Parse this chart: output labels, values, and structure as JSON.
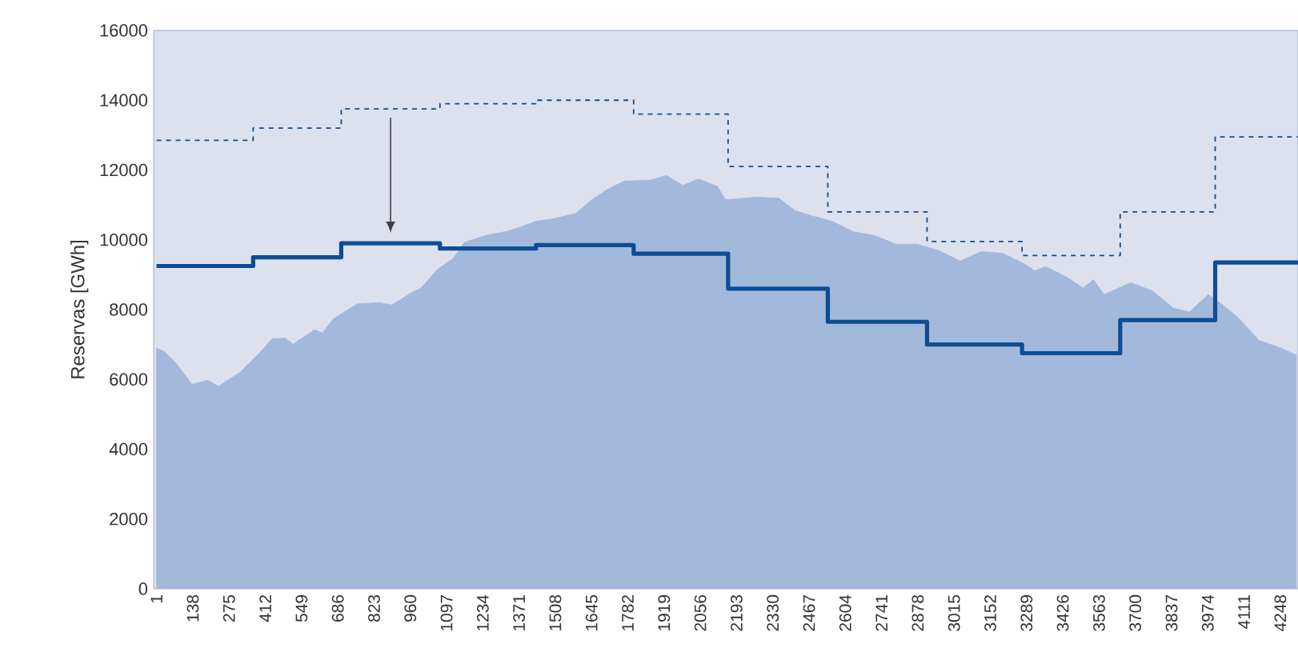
{
  "chart_data": {
    "type": "area",
    "ylabel": "Reservas [GWh]",
    "xlim": [
      -10,
      4315
    ],
    "ylim": [
      0,
      16000
    ],
    "xticks": [
      1,
      138,
      275,
      412,
      549,
      686,
      823,
      960,
      1097,
      1234,
      1371,
      1508,
      1645,
      1782,
      1919,
      2056,
      2193,
      2330,
      2467,
      2604,
      2741,
      2878,
      3015,
      3152,
      3289,
      3426,
      3563,
      3700,
      3837,
      3974,
      4111,
      4248
    ],
    "yticks": [
      0,
      2000,
      4000,
      6000,
      8000,
      10000,
      12000,
      14000,
      16000
    ],
    "series": [
      {
        "color": "#a3b9db",
        "x": [
          1,
          33,
          74,
          134,
          195,
          235,
          316,
          386,
          437,
          487,
          517,
          598,
          628,
          669,
          759,
          840,
          890,
          961,
          1001,
          1062,
          1122,
          1163,
          1243,
          1324,
          1364,
          1435,
          1506,
          1587,
          1647,
          1707,
          1768,
          1868,
          1929,
          1990,
          2050,
          2120,
          2151,
          2272,
          2353,
          2413,
          2474,
          2554,
          2635,
          2716,
          2796,
          2877,
          2958,
          3038,
          3119,
          3200,
          3280,
          3320,
          3361,
          3441,
          3502,
          3542,
          3582,
          3683,
          3764,
          3844,
          3905,
          3976,
          4026,
          4087,
          4167,
          4248,
          4308
        ],
        "values": [
          6900,
          6780,
          6470,
          5860,
          5970,
          5800,
          6200,
          6720,
          7160,
          7180,
          7010,
          7420,
          7330,
          7730,
          8160,
          8200,
          8130,
          8470,
          8620,
          9150,
          9460,
          9920,
          10120,
          10240,
          10330,
          10530,
          10610,
          10760,
          11150,
          11450,
          11680,
          11710,
          11840,
          11560,
          11740,
          11530,
          11150,
          11220,
          11190,
          10840,
          10690,
          10530,
          10230,
          10120,
          9870,
          9870,
          9690,
          9390,
          9660,
          9610,
          9310,
          9110,
          9230,
          8930,
          8620,
          8850,
          8430,
          8770,
          8540,
          8040,
          7930,
          8430,
          8160,
          7780,
          7120,
          6900,
          6700
        ]
      },
      {
        "type": "step",
        "color": "#0d4d96",
        "line_style": "solid",
        "x": [
          1,
          366,
          699,
          1072,
          1435,
          1804,
          2161,
          2538,
          2913,
          3272,
          3643,
          4002,
          4315
        ],
        "values": [
          9250,
          9500,
          9900,
          9750,
          9850,
          9600,
          8600,
          7650,
          7000,
          6750,
          7700,
          9350,
          9350
        ]
      },
      {
        "type": "step",
        "color": "#0d4d96",
        "line_style": "dashed",
        "x": [
          1,
          366,
          699,
          1072,
          1435,
          1804,
          2161,
          2538,
          2913,
          3272,
          3643,
          4002,
          4315
        ],
        "values": [
          12850,
          13200,
          13750,
          13900,
          14000,
          13600,
          12100,
          10800,
          9950,
          9550,
          10800,
          12950,
          12950
        ]
      }
    ]
  }
}
